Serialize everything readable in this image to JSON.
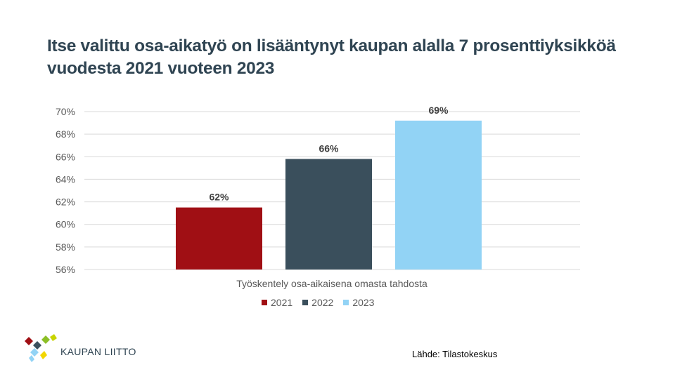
{
  "title": "Itse valittu osa-aikatyö on lisääntynyt kaupan alalla 7 prosenttiyksikköä vuodesta 2021 vuoteen 2023",
  "chart_data": {
    "type": "bar",
    "title": "Itse valittu osa-aikatyö on lisääntynyt kaupan alalla 7 prosenttiyksikköä vuodesta 2021 vuoteen 2023",
    "categories": [
      "Työskentely osa-aikaisena omasta tahdosta"
    ],
    "series": [
      {
        "name": "2021",
        "values": [
          61.5
        ],
        "label": "62%",
        "color": "#a00f14"
      },
      {
        "name": "2022",
        "values": [
          65.8
        ],
        "label": "66%",
        "color": "#3a4f5c"
      },
      {
        "name": "2023",
        "values": [
          69.2
        ],
        "label": "69%",
        "color": "#92d3f5"
      }
    ],
    "ylim": [
      56,
      70
    ],
    "yticks": [
      56,
      58,
      60,
      62,
      64,
      66,
      68,
      70
    ],
    "ytick_labels": [
      "56%",
      "58%",
      "60%",
      "62%",
      "64%",
      "66%",
      "68%",
      "70%"
    ],
    "xlabel": "",
    "ylabel": "",
    "grid": true,
    "legend": "bottom"
  },
  "logo": {
    "text": "KAUPAN LIITTO"
  },
  "source": "Lähde: Tilastokeskus",
  "colors": {
    "title": "#2f4452",
    "grid": "#d9d9d9",
    "axis_text": "#595959"
  }
}
